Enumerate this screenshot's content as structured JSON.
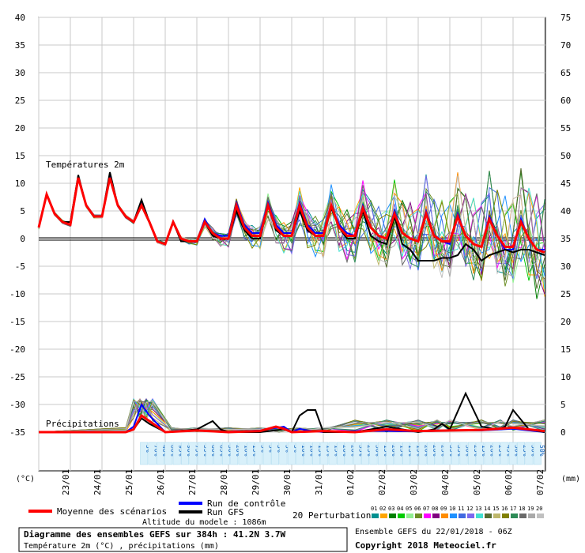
{
  "chart_data": {
    "type": "line",
    "temp_axis": {
      "unit": "(°C)",
      "ticks": [
        40,
        35,
        30,
        25,
        20,
        15,
        10,
        5,
        0,
        -5,
        -10,
        -15,
        -20,
        -25,
        -30,
        -35
      ],
      "range": [
        -35,
        40
      ]
    },
    "precip_axis": {
      "unit": "(mm)",
      "ticks": [
        75,
        70,
        65,
        60,
        55,
        50,
        45,
        40,
        35,
        30,
        25,
        20,
        15,
        10,
        5,
        0
      ],
      "range": [
        0,
        75
      ]
    },
    "x_labels": [
      "23/01",
      "24/01",
      "25/01",
      "26/01",
      "27/01",
      "28/01",
      "29/01",
      "30/01",
      "31/01",
      "01/02",
      "02/02",
      "03/02",
      "04/02",
      "05/02",
      "06/02",
      "07/02"
    ],
    "x_range_days": [
      0,
      16
    ],
    "labels": {
      "temp_section": "Températures 2m",
      "precip_section": "Précipitations"
    },
    "probability_strip": [
      "5%",
      "70%",
      "40%",
      "80%",
      "95%",
      "90%",
      "75%",
      "55%",
      "60%",
      "65%",
      "30%",
      "20%",
      "10%",
      "15%",
      "5%",
      "5%",
      "5%",
      "5%",
      "5%",
      "10%",
      "10%",
      "15%",
      "15%",
      "15%",
      "20%",
      "20%",
      "35%",
      "25%",
      "30%",
      "15%",
      "20%",
      "15%",
      "15%",
      "15%",
      "20%",
      "20%",
      "25%",
      "35%",
      "35%",
      "30%",
      "25%",
      "15%",
      "20%",
      "25%",
      "45%",
      "50%",
      "25%",
      "50%",
      "50%"
    ],
    "series": [
      {
        "name": "Moyenne des scénarios",
        "color": "#ff0000",
        "x": [
          0,
          0.25,
          0.5,
          0.75,
          1,
          1.25,
          1.5,
          1.75,
          2,
          2.25,
          2.5,
          2.75,
          3,
          3.25,
          3.5,
          3.75,
          4,
          4.25,
          4.5,
          4.75,
          5,
          5.25,
          5.5,
          5.75,
          6,
          6.25,
          6.5,
          6.75,
          7,
          7.25,
          7.5,
          7.75,
          8,
          8.25,
          8.5,
          8.75,
          9,
          9.25,
          9.5,
          9.75,
          10,
          10.25,
          10.5,
          10.75,
          11,
          11.25,
          11.5,
          11.75,
          12,
          12.25,
          12.5,
          12.75,
          13,
          13.25,
          13.5,
          13.75,
          14,
          14.25,
          14.5,
          14.75,
          15,
          15.25,
          15.5,
          15.75,
          16
        ],
        "y": [
          2,
          8,
          4.5,
          3,
          2.5,
          11,
          6,
          4,
          4,
          11,
          6,
          4,
          3,
          6,
          3,
          -0.5,
          -1,
          3,
          0,
          -0.5,
          -0.5,
          3,
          1,
          0,
          0,
          6,
          2,
          0.5,
          0.5,
          6,
          2,
          0.5,
          0.5,
          6,
          2,
          0.5,
          0.5,
          6,
          2,
          0.5,
          0.5,
          5.5,
          2,
          0.5,
          0,
          4.5,
          1,
          0,
          -0.5,
          4.5,
          0.5,
          -0.5,
          -0.5,
          4,
          0.5,
          -1,
          -1.5,
          3.5,
          0.5,
          -1.5,
          -1.5,
          3,
          0,
          -2,
          -2.5
        ]
      },
      {
        "name": "Run GFS",
        "color": "#000000",
        "x": [
          0,
          0.25,
          0.5,
          0.75,
          1,
          1.25,
          1.5,
          1.75,
          2,
          2.25,
          2.5,
          2.75,
          3,
          3.25,
          3.5,
          3.75,
          4,
          4.25,
          4.5,
          4.75,
          5,
          5.25,
          5.5,
          5.75,
          6,
          6.25,
          6.5,
          6.75,
          7,
          7.25,
          7.5,
          7.75,
          8,
          8.25,
          8.5,
          8.75,
          9,
          9.25,
          9.5,
          9.75,
          10,
          10.25,
          10.5,
          10.75,
          11,
          11.25,
          11.5,
          11.75,
          12,
          12.25,
          12.5,
          12.75,
          13,
          13.25,
          13.5,
          13.75,
          14,
          14.25,
          14.5,
          14.75,
          15,
          15.25,
          15.5,
          15.75,
          16
        ],
        "y": [
          2,
          8,
          4.5,
          3,
          3,
          11.5,
          6,
          4,
          4,
          12,
          6,
          4,
          3,
          7,
          3,
          -0.5,
          -1,
          3,
          -0.5,
          -0.5,
          -0.5,
          3,
          0.5,
          0,
          0,
          5,
          1.5,
          0,
          0,
          6,
          1.5,
          0.5,
          0.5,
          5,
          1.5,
          0.5,
          0.5,
          5.5,
          2,
          0,
          0,
          5,
          0.5,
          -0.5,
          -1,
          4,
          -1,
          -2,
          -4,
          -4,
          -4,
          -3.5,
          -3.5,
          -3,
          -1,
          -2,
          -4,
          -3,
          -2.5,
          -2,
          -2.5,
          -2,
          -2,
          -2.5,
          -3
        ]
      },
      {
        "name": "Run de contrôle",
        "color": "#0000ff",
        "x": [
          0,
          0.25,
          0.5,
          0.75,
          1,
          1.25,
          1.5,
          1.75,
          2,
          2.25,
          2.5,
          2.75,
          3,
          3.25,
          3.5,
          3.75,
          4,
          4.25,
          4.5,
          4.75,
          5,
          5.25,
          5.5,
          5.75,
          6,
          6.25,
          6.5,
          6.75,
          7,
          7.25,
          7.5,
          7.75,
          8,
          8.25,
          8.5,
          8.75,
          9,
          9.25,
          9.5,
          9.75,
          10,
          10.25,
          10.5,
          10.75,
          11,
          11.25,
          11.5,
          11.75,
          12,
          12.25,
          12.5,
          12.75,
          13,
          13.25,
          13.5,
          13.75,
          14,
          14.25,
          14.5,
          14.75,
          15,
          15.25,
          15.5,
          15.75,
          16
        ],
        "y": [
          2,
          8,
          4.5,
          3,
          2.5,
          11,
          6,
          4,
          4,
          11.5,
          6,
          4,
          3,
          6.5,
          3,
          -0.5,
          -1,
          3,
          0,
          -0.5,
          -0.5,
          3.5,
          1,
          0.5,
          0.5,
          6.5,
          2.5,
          1,
          1,
          6.5,
          2.5,
          1,
          1,
          6.5,
          2.5,
          1,
          1,
          6,
          2.5,
          1,
          0.5,
          6,
          2,
          0.5,
          0,
          5,
          1,
          0,
          -0.5,
          5,
          0.5,
          -0.5,
          -1,
          4.5,
          0.5,
          -1,
          -1.5,
          4,
          0.5,
          -2,
          -2,
          3.5,
          0,
          -2,
          -2
        ]
      }
    ],
    "precip_series": [
      {
        "name": "Moyenne des scénarios",
        "color": "#ff0000",
        "x": [
          0,
          1,
          2,
          2.75,
          3,
          3.25,
          3.5,
          4,
          5,
          6,
          7,
          7.5,
          7.75,
          8,
          9,
          10,
          11,
          12,
          13,
          14,
          15,
          16
        ],
        "y": [
          0,
          0,
          0,
          0,
          0.5,
          3,
          2,
          0,
          0.3,
          0,
          0.2,
          1,
          0.6,
          0,
          0.2,
          0,
          0.5,
          0.2,
          0.3,
          0.4,
          0.8,
          0.2
        ]
      },
      {
        "name": "Run GFS",
        "color": "#000000",
        "x": [
          0,
          1,
          2,
          2.75,
          3,
          3.25,
          3.5,
          4,
          5,
          5.5,
          5.75,
          6,
          7,
          7.75,
          8,
          8.25,
          8.5,
          8.75,
          9,
          10,
          11,
          12,
          12.5,
          12.75,
          13,
          13.5,
          14,
          14.5,
          14.75,
          15,
          15.5,
          16
        ],
        "y": [
          0,
          0,
          0,
          0,
          0.5,
          2.5,
          1.5,
          0,
          0.5,
          2,
          0.5,
          0,
          0,
          0.5,
          0,
          3,
          4,
          4,
          0,
          0,
          1,
          0,
          0.5,
          1.5,
          0.5,
          7,
          1,
          0.5,
          1,
          4,
          0.5,
          0
        ]
      },
      {
        "name": "Run de contrôle",
        "color": "#0000ff",
        "x": [
          0,
          1,
          2,
          2.75,
          3,
          3.25,
          3.5,
          4,
          5,
          6,
          7,
          7.75,
          8,
          8.25,
          8.5,
          9,
          10,
          11,
          12,
          13,
          14,
          15,
          16
        ],
        "y": [
          0,
          0,
          0,
          0,
          1,
          5,
          3,
          0,
          0.3,
          0,
          0.3,
          1,
          0,
          0.6,
          0.3,
          0,
          0.2,
          0.2,
          0.1,
          0.3,
          0.3,
          0.6,
          0
        ]
      }
    ],
    "ensemble_colors": [
      "#009090",
      "#ffa500",
      "#008000",
      "#00cc00",
      "#90ee90",
      "#6b8e23",
      "#ff00ff",
      "#800080",
      "#ff8c00",
      "#1e90ff",
      "#4169e1",
      "#7b68ee",
      "#40e0d0",
      "#556b2f",
      "#bdb76b",
      "#808000",
      "#2e8b57",
      "#696969",
      "#a9a9a9",
      "#c0c0c0"
    ],
    "perturbation_numbers": [
      "01",
      "02",
      "03",
      "04",
      "05",
      "06",
      "07",
      "08",
      "09",
      "10",
      "11",
      "12",
      "13",
      "14",
      "15",
      "16",
      "17",
      "18",
      "19",
      "20"
    ]
  },
  "legend": {
    "mean": "Moyenne des scénarios",
    "control": "Run de contrôle",
    "gfs": "Run GFS",
    "perturbations": "20 Perturbations",
    "mean_color": "#ff0000",
    "control_color": "#0000ff",
    "gfs_color": "#000000"
  },
  "footer": {
    "altitude": "Altitude du modele : 1086m",
    "title": "Diagramme des ensembles GEFS sur 384h : 41.2N 3.7W",
    "subtitle": "Température 2m (°C) , précipitations (mm)",
    "ensemble_run": "Ensemble GEFS du 22/01/2018 - 06Z",
    "copyright": "Copyright 2018 Meteociel.fr"
  }
}
